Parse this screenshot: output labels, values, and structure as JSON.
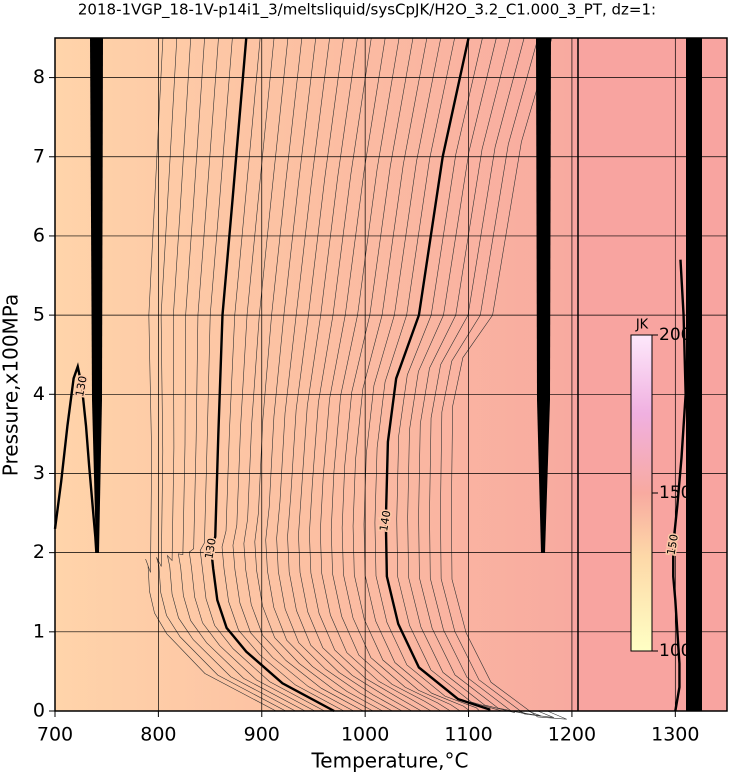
{
  "chart_data": {
    "type": "contour",
    "title": "2018-1VGP_18-1V-p14i1_3/meltsliquid/sysCpJK/H2O_3.2_C1.000_3_PT, dz=1:",
    "x_label": "Temperature,°C",
    "y_label": "Pressure,x100MPa",
    "xlim": [
      700,
      1350
    ],
    "ylim": [
      0,
      8.5
    ],
    "xticks": [
      700,
      800,
      900,
      1000,
      1100,
      1200,
      1300
    ],
    "yticks": [
      0,
      1,
      2,
      3,
      4,
      5,
      6,
      7,
      8
    ],
    "grid": true,
    "contours": [
      {
        "level": 130,
        "x": [
          885,
          872,
          862,
          858,
          855,
          851,
          853,
          857,
          866,
          885,
          920,
          970
        ],
        "y": [
          8.5,
          6.5,
          5.0,
          3.5,
          2.2,
          2.05,
          1.8,
          1.4,
          1.05,
          0.75,
          0.35,
          0
        ]
      },
      {
        "level": 140,
        "x": [
          1100,
          1075,
          1052,
          1030,
          1022,
          1020,
          1021,
          1032,
          1052,
          1090,
          1120,
          1120
        ],
        "y": [
          8.5,
          7.0,
          5.0,
          4.2,
          3.4,
          2.4,
          1.7,
          1.1,
          0.55,
          0.15,
          0.02,
          0
        ]
      },
      {
        "level": 130,
        "x": [
          700,
          706,
          712,
          718,
          722,
          726,
          730,
          733,
          735,
          737,
          739,
          740
        ],
        "y": [
          2.3,
          2.9,
          3.6,
          4.2,
          4.35,
          4.1,
          3.6,
          3.1,
          2.8,
          2.5,
          2.2,
          2.0
        ]
      },
      {
        "level": 150,
        "x": [
          1305,
          1308,
          1310,
          1306,
          1302,
          1298,
          1298,
          1300,
          1302,
          1304,
          1304,
          1300
        ],
        "y": [
          5.7,
          5.0,
          4.0,
          3.2,
          2.6,
          2.1,
          1.7,
          1.4,
          1.0,
          0.6,
          0.3,
          0
        ]
      }
    ],
    "colorbar": {
      "label": "JK",
      "lim": [
        100,
        200
      ],
      "ticks": [
        100,
        150,
        200
      ]
    }
  }
}
